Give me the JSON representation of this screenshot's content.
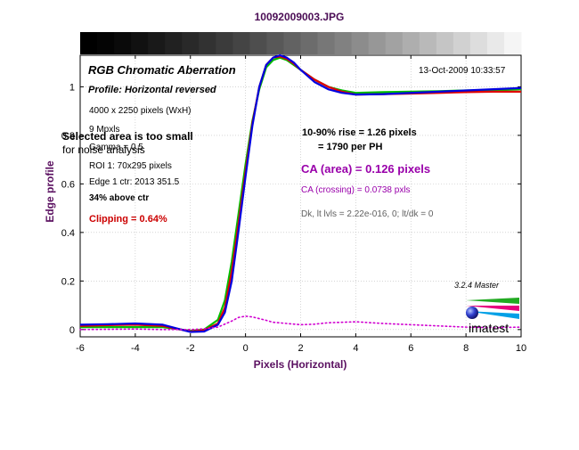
{
  "chart_data": {
    "type": "line",
    "title": "10092009003.JPG",
    "xlabel": "Pixels (Horizontal)",
    "ylabel": "Edge profile",
    "xlim": [
      -6,
      10
    ],
    "ylim": [
      -0.03,
      1.13
    ],
    "x_ticks": [
      -6,
      -4,
      -2,
      0,
      2,
      4,
      6,
      8,
      10
    ],
    "y_ticks": [
      0,
      0.2,
      0.4,
      0.6,
      0.8,
      1
    ],
    "grid": true,
    "series": [
      {
        "color": "#00c000",
        "style": "solid",
        "x": [
          -6,
          -5,
          -4,
          -3,
          -2,
          -1.5,
          -1,
          -0.75,
          -0.5,
          -0.25,
          0,
          0.25,
          0.5,
          0.75,
          1,
          1.25,
          1.5,
          1.75,
          2,
          2.5,
          3,
          3.5,
          4,
          5,
          6,
          7,
          8,
          9,
          10
        ],
        "y": [
          0.01,
          0.01,
          0.01,
          0.01,
          -0.005,
          0.0,
          0.04,
          0.12,
          0.28,
          0.48,
          0.68,
          0.86,
          0.99,
          1.08,
          1.11,
          1.12,
          1.11,
          1.09,
          1.07,
          1.03,
          1.0,
          0.985,
          0.975,
          0.978,
          0.98,
          0.982,
          0.985,
          0.985,
          0.99
        ]
      },
      {
        "color": "#e00000",
        "style": "solid",
        "x": [
          -6,
          -5,
          -4,
          -3,
          -2,
          -1.5,
          -1,
          -0.75,
          -0.5,
          -0.25,
          0,
          0.25,
          0.5,
          0.75,
          1,
          1.25,
          1.5,
          1.75,
          2,
          2.5,
          3,
          3.5,
          4,
          5,
          6,
          7,
          8,
          9,
          10
        ],
        "y": [
          0.015,
          0.018,
          0.02,
          0.015,
          -0.008,
          -0.003,
          0.025,
          0.09,
          0.24,
          0.44,
          0.65,
          0.85,
          1.0,
          1.09,
          1.12,
          1.125,
          1.115,
          1.095,
          1.07,
          1.03,
          1.0,
          0.98,
          0.968,
          0.97,
          0.972,
          0.975,
          0.978,
          0.98,
          0.98
        ]
      },
      {
        "color": "#0000e0",
        "style": "solid",
        "x": [
          -6,
          -5,
          -4,
          -3,
          -2,
          -1.5,
          -1,
          -0.75,
          -0.5,
          -0.25,
          0,
          0.25,
          0.5,
          0.75,
          1,
          1.25,
          1.5,
          1.75,
          2,
          2.5,
          3,
          3.5,
          4,
          5,
          6,
          7,
          8,
          9,
          10
        ],
        "y": [
          0.02,
          0.022,
          0.025,
          0.02,
          -0.01,
          -0.008,
          0.02,
          0.07,
          0.2,
          0.41,
          0.63,
          0.84,
          1.0,
          1.09,
          1.12,
          1.13,
          1.12,
          1.1,
          1.07,
          1.02,
          0.99,
          0.975,
          0.968,
          0.97,
          0.975,
          0.98,
          0.985,
          0.99,
          0.995
        ]
      },
      {
        "color": "#d000d0",
        "style": "dotted",
        "x": [
          -6,
          -5,
          -4,
          -3,
          -2,
          -1.5,
          -1,
          -0.5,
          -0.25,
          0,
          0.25,
          0.5,
          0.75,
          1,
          1.5,
          2,
          2.5,
          3,
          3.5,
          4,
          5,
          6,
          7,
          8,
          9,
          10
        ],
        "y": [
          0.0,
          0.001,
          0.002,
          0.0,
          0.0,
          0.003,
          0.01,
          0.035,
          0.05,
          0.055,
          0.052,
          0.045,
          0.038,
          0.03,
          0.025,
          0.02,
          0.022,
          0.028,
          0.03,
          0.032,
          0.025,
          0.02,
          0.015,
          0.01,
          0.008,
          0.01
        ]
      }
    ],
    "annotations": {
      "header": "RGB Chromatic Aberration",
      "profile": "Profile: Horizontal reversed",
      "datetime": "13-Oct-2009 10:33:57",
      "image_size": "4000 x 2250 pixels (WxH)",
      "mpxls": "9 Mpxls",
      "gamma": "Gamma = 0.5",
      "warning_line1": "Selected area is too small",
      "warning_line2": "for noise analysis",
      "roi": "ROI 1: 70x295 pixels",
      "edge_ctr": "Edge 1 ctr: 2013  351.5",
      "above_ctr": "34% above ctr",
      "clipping": "Clipping =   0.64%",
      "rise_line1": "10-90% rise = 1.26 pixels",
      "rise_line2": "= 1790 per PH",
      "ca_area": "CA (area) = 0.126 pixels",
      "ca_crossing": "CA (crossing) = 0.0738 pxls",
      "dk_levels": "Dk, lt lvls = 2.22e-016, 0;  lt/dk = 0",
      "version": "3.2.4  Master",
      "logo": "imatest"
    },
    "colors": {
      "title": "#4b0d55",
      "axis_label": "#5a1060",
      "clipping": "#cc0000",
      "ca": "#9900aa",
      "muted": "#606060"
    }
  }
}
